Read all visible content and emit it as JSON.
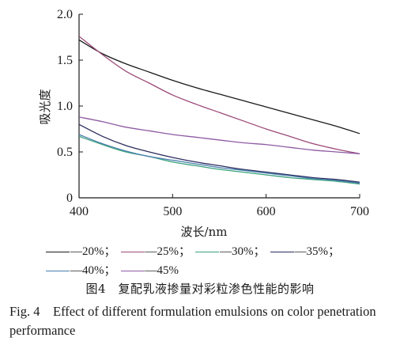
{
  "chart_data": {
    "type": "line",
    "xlabel": "波长/nm",
    "ylabel": "吸光度",
    "xlim": [
      400,
      700
    ],
    "ylim": [
      0,
      2.0
    ],
    "xticks": [
      "400",
      "500",
      "600",
      "700"
    ],
    "yticks": [
      "0",
      "0.5",
      "1.0",
      "1.5",
      "2.0"
    ],
    "x": [
      400,
      425,
      450,
      475,
      500,
      525,
      550,
      575,
      600,
      625,
      650,
      675,
      700
    ],
    "series": [
      {
        "name": "20%",
        "color": "#1a1a1a",
        "values": [
          1.72,
          1.57,
          1.46,
          1.37,
          1.28,
          1.2,
          1.13,
          1.06,
          0.99,
          0.92,
          0.85,
          0.78,
          0.7
        ]
      },
      {
        "name": "25%",
        "color": "#9c4a78",
        "values": [
          1.76,
          1.56,
          1.38,
          1.25,
          1.12,
          1.02,
          0.93,
          0.84,
          0.75,
          0.67,
          0.59,
          0.53,
          0.48
        ]
      },
      {
        "name": "30%",
        "color": "#3aa17a",
        "values": [
          0.67,
          0.58,
          0.5,
          0.45,
          0.39,
          0.35,
          0.31,
          0.28,
          0.25,
          0.22,
          0.2,
          0.18,
          0.15
        ]
      },
      {
        "name": "35%",
        "color": "#2c2c5e",
        "values": [
          0.8,
          0.67,
          0.57,
          0.5,
          0.44,
          0.39,
          0.35,
          0.31,
          0.28,
          0.25,
          0.22,
          0.2,
          0.17
        ]
      },
      {
        "name": "40%",
        "color": "#4a7fb0",
        "values": [
          0.69,
          0.59,
          0.51,
          0.45,
          0.41,
          0.37,
          0.33,
          0.3,
          0.27,
          0.24,
          0.21,
          0.19,
          0.16
        ]
      },
      {
        "name": "45%",
        "color": "#8e5aa3",
        "values": [
          0.88,
          0.83,
          0.77,
          0.73,
          0.69,
          0.66,
          0.63,
          0.6,
          0.58,
          0.55,
          0.52,
          0.5,
          0.48
        ]
      }
    ]
  },
  "legend": {
    "items": [
      {
        "text": "—20%；",
        "color": "#1a1a1a"
      },
      {
        "text": "—25%；",
        "color": "#9c4a78"
      },
      {
        "text": "—30%；",
        "color": "#3aa17a"
      },
      {
        "text": "—35%；",
        "color": "#2c2c5e"
      },
      {
        "text": "—40%；",
        "color": "#4a7fb0"
      },
      {
        "text": "—45%",
        "color": "#8e5aa3"
      }
    ]
  },
  "caption": {
    "cn": "图4　复配乳液掺量对彩粒渗色性能的影响",
    "en": "Fig. 4　Effect of different formulation emulsions on color penetration performance"
  }
}
